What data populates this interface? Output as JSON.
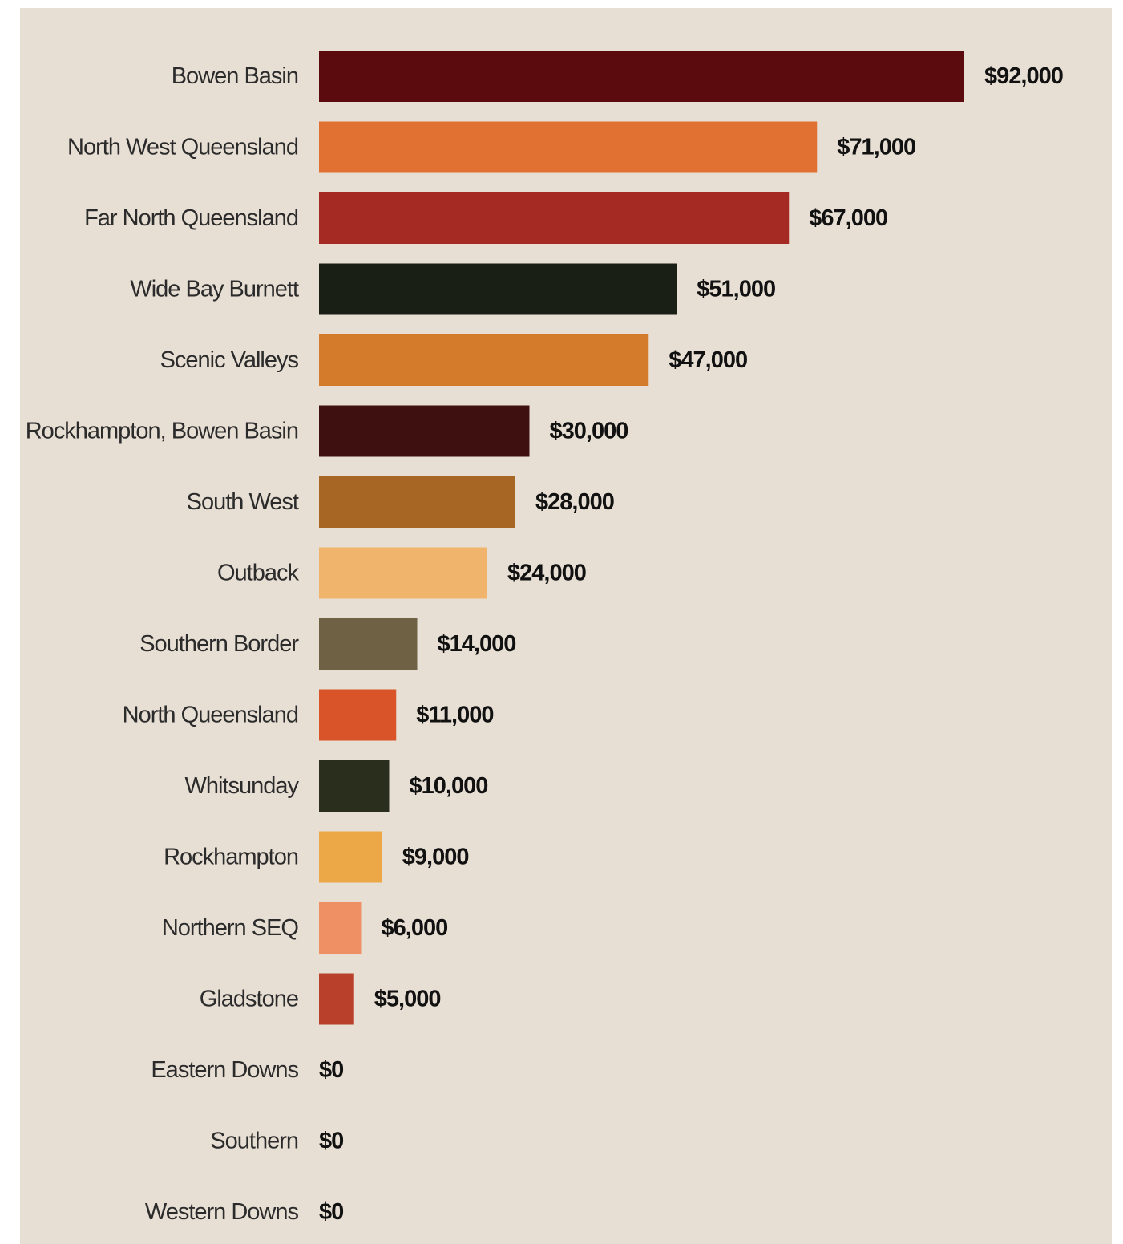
{
  "chart_data": {
    "type": "bar",
    "orientation": "horizontal",
    "title": "",
    "xlabel": "",
    "ylabel": "",
    "xlim": [
      0,
      92000
    ],
    "grid": false,
    "legend": "none",
    "background": "#e8dfd4",
    "categories": [
      "Bowen Basin",
      "North West Queensland",
      "Far North Queensland",
      "Wide Bay Burnett",
      "Scenic Valleys",
      "Rockhampton, Bowen Basin",
      "South West",
      "Outback",
      "Southern Border",
      "North Queensland",
      "Whitsunday",
      "Rockhampton",
      "Northern SEQ",
      "Gladstone",
      "Eastern Downs",
      "Southern",
      "Western Downs"
    ],
    "values": [
      92000,
      71000,
      67000,
      51000,
      47000,
      30000,
      28000,
      24000,
      14000,
      11000,
      10000,
      9000,
      6000,
      5000,
      0,
      0,
      0
    ],
    "value_labels": [
      "$92,000",
      "$71,000",
      "$67,000",
      "$51,000",
      "$47,000",
      "$30,000",
      "$28,000",
      "$24,000",
      "$14,000",
      "$11,000",
      "$10,000",
      "$9,000",
      "$6,000",
      "$5,000",
      "$0",
      "$0",
      "$0"
    ],
    "colors": [
      "#5b0a0d",
      "#e17033",
      "#a62a24",
      "#1a1f16",
      "#d47a2b",
      "#3f1010",
      "#a86624",
      "#f1b46d",
      "#6e6144",
      "#d95428",
      "#2a2e1c",
      "#eca847",
      "#ef9064",
      "#b9402b",
      "#000000",
      "#000000",
      "#000000"
    ]
  }
}
